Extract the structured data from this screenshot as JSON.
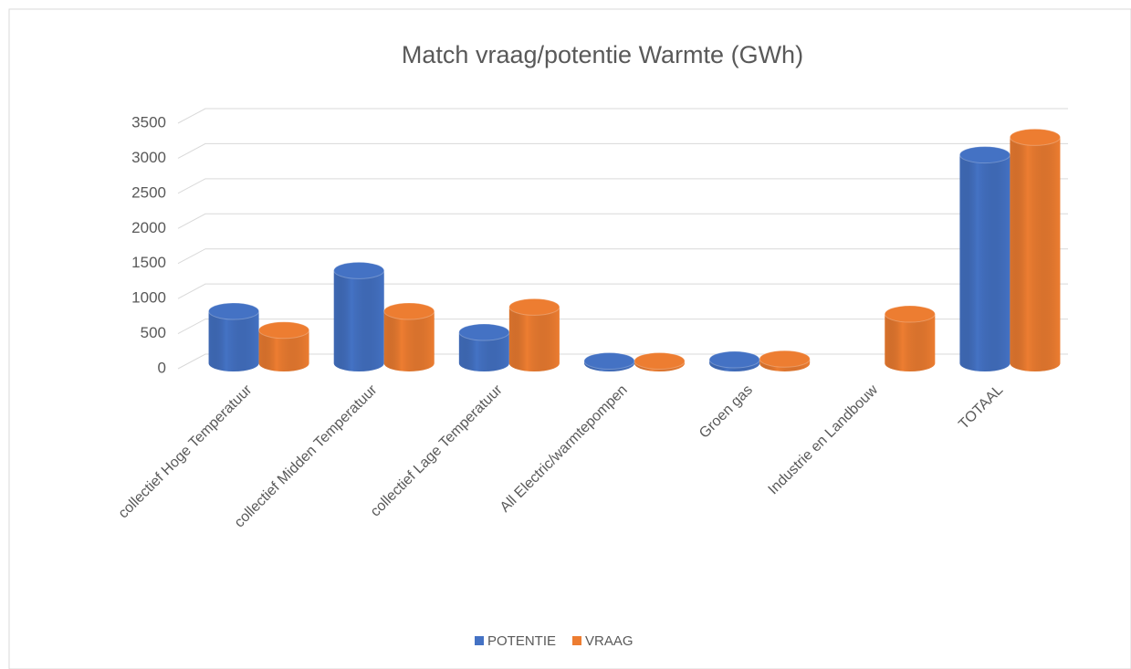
{
  "chart_data": {
    "type": "bar3d",
    "title": "Match vraag/potentie Warmte (GWh)",
    "categories": [
      "collectief Hoge Temperatuur",
      "collectief Midden Temperatuur",
      "collectief Lage Temperatuur",
      "All Electric/warmtepompen",
      "Groen gas",
      "Industrie en Landbouw",
      "TOTAAL"
    ],
    "series": [
      {
        "name": "POTENTIE",
        "color": "#4472c4",
        "values": [
          820,
          1400,
          520,
          110,
          130,
          null,
          3050
        ]
      },
      {
        "name": "VRAAG",
        "color": "#ed7d31",
        "values": [
          550,
          820,
          880,
          110,
          140,
          780,
          3300
        ]
      }
    ],
    "ylim": [
      0,
      3500
    ],
    "yticks": [
      0,
      500,
      1000,
      1500,
      2000,
      2500,
      3000,
      3500
    ],
    "grid": true,
    "legend": "bottom"
  }
}
